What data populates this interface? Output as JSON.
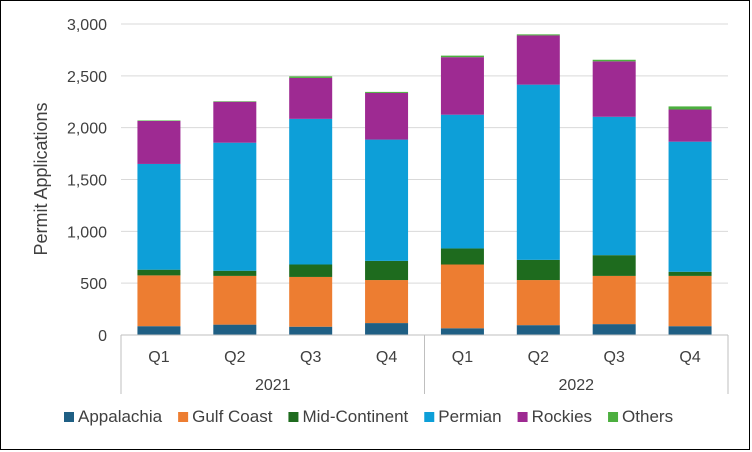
{
  "chart_data": {
    "type": "bar",
    "stacked": true,
    "title": "",
    "xlabel": "",
    "ylabel": "Permit Applications",
    "ylim": [
      0,
      3000
    ],
    "yticks": [
      0,
      500,
      1000,
      1500,
      2000,
      2500,
      3000
    ],
    "ytick_labels": [
      "0",
      "500",
      "1,000",
      "1,500",
      "2,000",
      "2,500",
      "3,000"
    ],
    "grid": true,
    "legend_position": "bottom",
    "categories": [
      "Q1",
      "Q2",
      "Q3",
      "Q4",
      "Q1",
      "Q2",
      "Q3",
      "Q4"
    ],
    "groups": [
      {
        "label": "2021",
        "count": 4
      },
      {
        "label": "2022",
        "count": 4
      }
    ],
    "series": [
      {
        "name": "Appalachia",
        "color": "#1f5f84",
        "values": [
          85,
          100,
          80,
          115,
          65,
          95,
          105,
          85
        ]
      },
      {
        "name": "Gulf Coast",
        "color": "#ed7d31",
        "values": [
          490,
          470,
          480,
          415,
          615,
          435,
          465,
          485
        ]
      },
      {
        "name": "Mid-Continent",
        "color": "#1e6b1e",
        "values": [
          55,
          50,
          120,
          185,
          155,
          195,
          200,
          40
        ]
      },
      {
        "name": "Permian",
        "color": "#0d9fd8",
        "values": [
          1020,
          1235,
          1405,
          1170,
          1290,
          1690,
          1335,
          1255
        ]
      },
      {
        "name": "Rockies",
        "color": "#9e2a92",
        "values": [
          415,
          395,
          395,
          450,
          555,
          475,
          535,
          310
        ]
      },
      {
        "name": "Others",
        "color": "#4caf3f",
        "values": [
          5,
          5,
          15,
          10,
          15,
          10,
          15,
          30
        ]
      }
    ]
  }
}
